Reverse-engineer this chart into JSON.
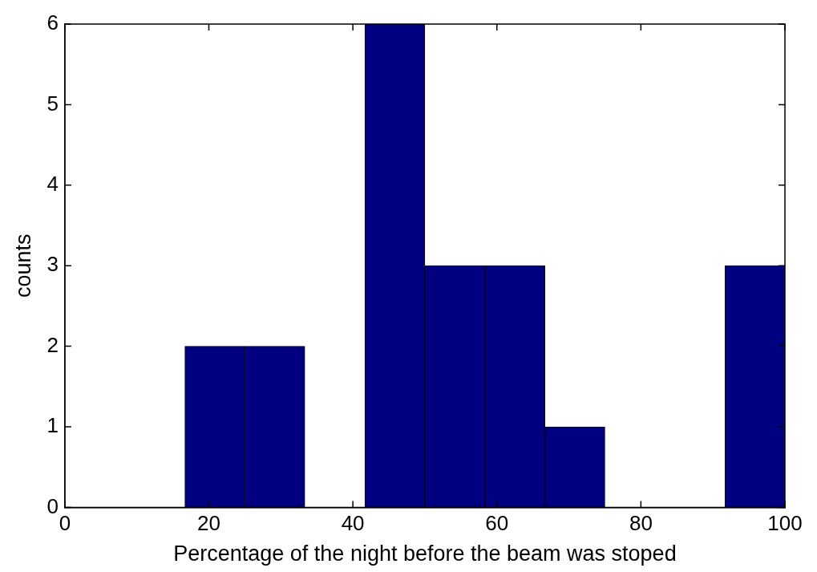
{
  "chart_data": {
    "type": "histogram",
    "xlabel": "Percentage of the night before the beam was stoped",
    "ylabel": "counts",
    "bins": [
      0,
      8.33,
      16.67,
      25,
      33.33,
      41.67,
      50,
      58.33,
      66.67,
      75,
      83.33,
      91.67,
      100
    ],
    "values": [
      0,
      0,
      2,
      2,
      0,
      6,
      3,
      3,
      1,
      0,
      0,
      3
    ],
    "color": "#000080",
    "xlim": [
      0,
      100
    ],
    "xticks": [
      0,
      20,
      40,
      60,
      80,
      100
    ],
    "ylim": [
      0,
      6
    ],
    "yticks": [
      0,
      1,
      2,
      3,
      4,
      5,
      6
    ],
    "grid": false,
    "legend": false
  }
}
